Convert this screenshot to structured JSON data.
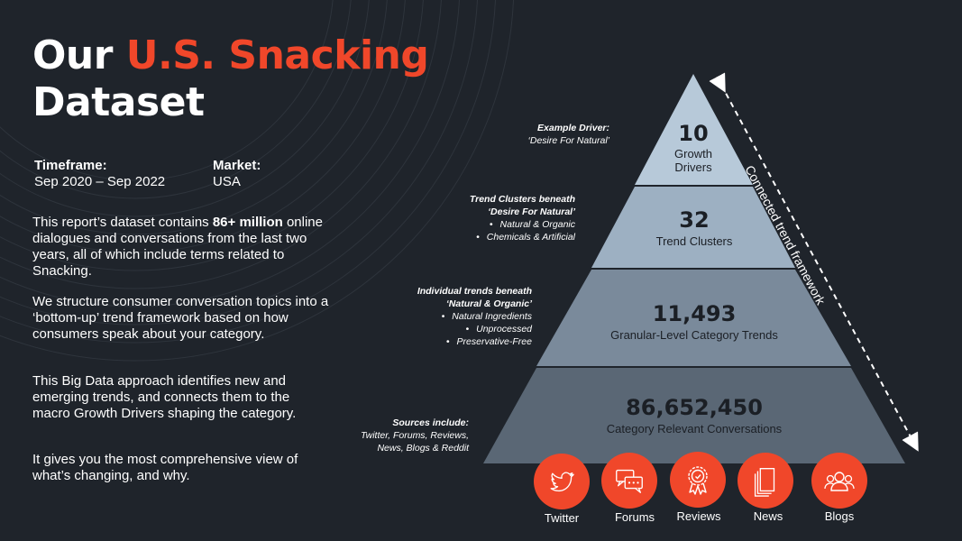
{
  "title": {
    "prefix": "Our ",
    "highlight": "U.S. Snacking",
    "line2": "Dataset"
  },
  "meta": {
    "timeframe_label": "Timeframe:",
    "timeframe_value": "Sep 2020 – Sep 2022",
    "market_label": "Market:",
    "market_value": "USA"
  },
  "body": {
    "p1_before": "This report’s dataset contains ",
    "p1_bold": "86+ million",
    "p1_after": " online dialogues and conversations from the last two years, all of which include terms related to Snacking.",
    "p2": "We structure consumer conversation topics into a ‘bottom-up’ trend framework based on how consumers speak about your category.",
    "p3": "This Big Data approach identifies new and emerging trends, and connects them to the macro Growth Drivers shaping the category.",
    "p4": "It gives you the most comprehensive view of what’s changing, and why."
  },
  "pyramid": {
    "tiers": [
      {
        "number": "10",
        "label_line1": "Growth",
        "label_line2": "Drivers"
      },
      {
        "number": "32",
        "label": "Trend Clusters"
      },
      {
        "number": "11,493",
        "label": "Granular-Level Category Trends"
      },
      {
        "number": "86,652,450",
        "label": "Category Relevant Conversations"
      }
    ],
    "framework_label": "Connected trend framework"
  },
  "notes": {
    "driver": {
      "title": "Example Driver:",
      "line": "‘Desire For Natural’"
    },
    "clusters": {
      "title_line1": "Trend Clusters beneath",
      "title_line2": "‘Desire For Natural’",
      "items": [
        "Natural & Organic",
        "Chemicals & Artificial"
      ]
    },
    "trends": {
      "title_line1": "Individual trends beneath",
      "title_line2": "‘Natural & Organic’",
      "items": [
        "Natural Ingredients",
        "Unprocessed",
        "Preservative-Free"
      ]
    },
    "sources": {
      "title": "Sources include:",
      "line1": "Twitter, Forums, Reviews,",
      "line2": "News, Blogs & Reddit"
    }
  },
  "sources": [
    {
      "label": "Twitter",
      "icon": "twitter-bird-icon"
    },
    {
      "label": "Forums",
      "icon": "chat-bubbles-icon"
    },
    {
      "label": "Reviews",
      "icon": "award-ribbon-icon"
    },
    {
      "label": "News",
      "icon": "newspaper-icon"
    },
    {
      "label": "Blogs",
      "icon": "people-group-icon"
    }
  ],
  "colors": {
    "background": "#1f242b",
    "accent": "#f0472a",
    "tier1": "#b7c9d9",
    "tier2": "#9db0c2",
    "tier3": "#7a8a9b",
    "tier4": "#5a6775"
  }
}
